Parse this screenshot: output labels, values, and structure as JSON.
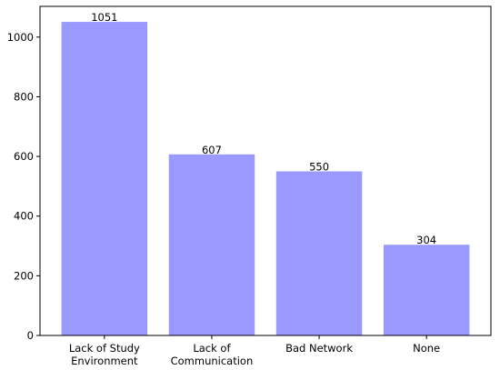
{
  "chart_data": {
    "type": "bar",
    "title": "",
    "xlabel": "",
    "ylabel": "",
    "categories": [
      [
        "Lack of Study",
        "Environment"
      ],
      [
        "Lack of",
        "Communication"
      ],
      [
        "Bad Network"
      ],
      [
        "None"
      ]
    ],
    "values": [
      1051,
      607,
      550,
      304
    ],
    "data_labels": [
      "1051",
      "607",
      "550",
      "304"
    ],
    "ylim": [
      0,
      1103
    ],
    "yticks": [
      0,
      200,
      400,
      600,
      800,
      1000
    ],
    "grid": false,
    "bar_color": "#9999ff"
  }
}
